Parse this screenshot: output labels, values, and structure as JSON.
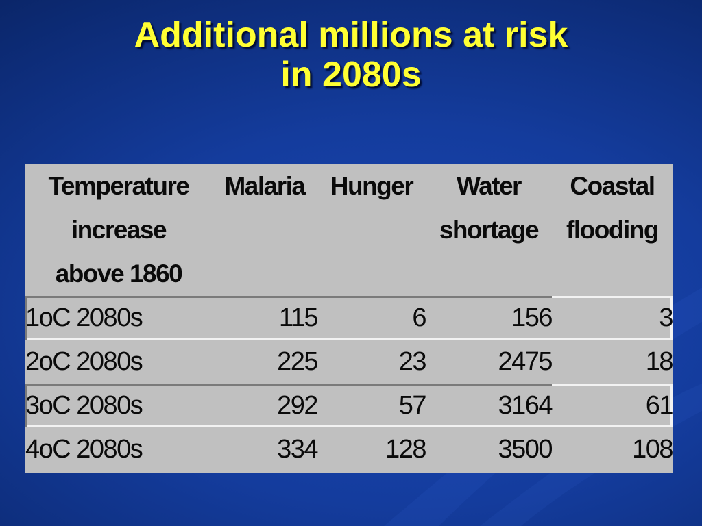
{
  "slide": {
    "title_line1": "Additional millions at risk",
    "title_line2": "in 2080s",
    "colors": {
      "background": "#143c9d",
      "title": "#ffff33",
      "table_background": "#c0c0c0",
      "table_text": "#0a0a0a"
    }
  },
  "chart_data": {
    "type": "table",
    "columns": [
      [
        "Temperature",
        "increase",
        "above 1860"
      ],
      [
        "Malaria"
      ],
      [
        "Hunger"
      ],
      [
        "Water",
        "shortage"
      ],
      [
        "Coastal",
        "flooding"
      ]
    ],
    "rows": [
      {
        "label": "1oC 2080s",
        "values": [
          115,
          6,
          156,
          3
        ]
      },
      {
        "label": "2oC 2080s",
        "values": [
          225,
          23,
          2475,
          18
        ]
      },
      {
        "label": "3oC 2080s",
        "values": [
          292,
          57,
          3164,
          61
        ]
      },
      {
        "label": "4oC 2080s",
        "values": [
          334,
          128,
          3500,
          108
        ]
      }
    ]
  }
}
